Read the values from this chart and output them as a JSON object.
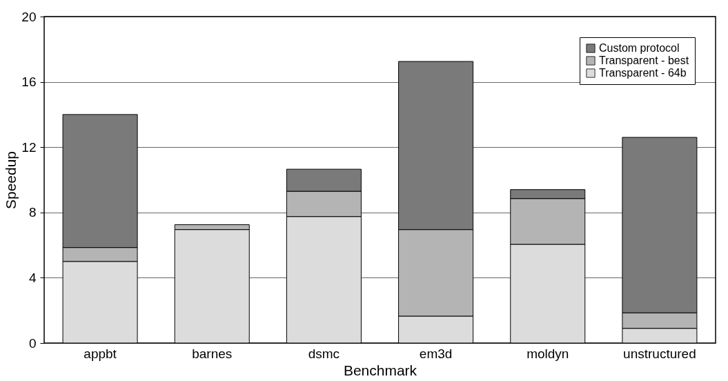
{
  "chart_data": {
    "type": "bar",
    "stacked": true,
    "xlabel": "Benchmark",
    "ylabel": "Speedup",
    "categories": [
      "appbt",
      "barnes",
      "dsmc",
      "em3d",
      "moldyn",
      "unstructured"
    ],
    "series": [
      {
        "name": "Transparent - 64b",
        "color": "#dcdcdc",
        "values": [
          5.0,
          6.95,
          7.75,
          1.65,
          6.05,
          0.9
        ]
      },
      {
        "name": "Transparent - best",
        "color": "#b4b4b4",
        "values": [
          0.85,
          0.3,
          1.55,
          5.3,
          2.8,
          0.95
        ]
      },
      {
        "name": "Custom protocol",
        "color": "#7a7a7a",
        "values": [
          8.15,
          null,
          1.35,
          10.3,
          0.55,
          10.75
        ]
      }
    ],
    "ylim": [
      0,
      20
    ],
    "yticks": [
      0,
      4,
      8,
      12,
      16,
      20
    ],
    "grid": "y",
    "legend": "top right"
  }
}
